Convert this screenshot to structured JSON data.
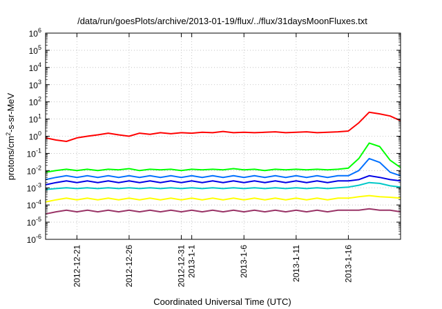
{
  "chart_data": {
    "type": "line",
    "title": "/data/run/goesPlots/archive/2013-01-19/flux/../flux/31daysMoonFluxes.txt",
    "xlabel": "Coordinated Universal Time (UTC)",
    "ylabel": "protons/cm²-s-sr-MeV",
    "ylim": [
      1e-06,
      1000000.0
    ],
    "yscale": "log",
    "xlim": [
      "2012-12-18",
      "2013-01-21"
    ],
    "grid": true,
    "y_ticks": [
      {
        "base": "10",
        "exp": "6"
      },
      {
        "base": "10",
        "exp": "5"
      },
      {
        "base": "10",
        "exp": "4"
      },
      {
        "base": "10",
        "exp": "3"
      },
      {
        "base": "10",
        "exp": "2"
      },
      {
        "base": "10",
        "exp": "1"
      },
      {
        "base": "10",
        "exp": "0"
      },
      {
        "base": "10",
        "exp": "-1"
      },
      {
        "base": "10",
        "exp": "-2"
      },
      {
        "base": "10",
        "exp": "-3"
      },
      {
        "base": "10",
        "exp": "-4"
      },
      {
        "base": "10",
        "exp": "-5"
      },
      {
        "base": "10",
        "exp": "-6"
      }
    ],
    "x_ticks": [
      {
        "date": "2012-12-21",
        "label": "2012-12-21"
      },
      {
        "date": "2012-12-26",
        "label": "2012-12-26"
      },
      {
        "date": "2012-12-31",
        "label": "2012-12-31"
      },
      {
        "date": "2013-01-01",
        "label": "2013-1-1"
      },
      {
        "date": "2013-01-06",
        "label": "2013-1-6"
      },
      {
        "date": "2013-01-11",
        "label": "2013-1-11"
      },
      {
        "date": "2013-01-16",
        "label": "2013-1-16"
      }
    ],
    "series": [
      {
        "color": "#ff0000",
        "points": [
          [
            "2012-12-18",
            0.8
          ],
          [
            "2012-12-19",
            0.6
          ],
          [
            "2012-12-20",
            0.5
          ],
          [
            "2012-12-21",
            0.8
          ],
          [
            "2012-12-22",
            1.0
          ],
          [
            "2012-12-23",
            1.2
          ],
          [
            "2012-12-24",
            1.5
          ],
          [
            "2012-12-25",
            1.2
          ],
          [
            "2012-12-26",
            1.0
          ],
          [
            "2012-12-27",
            1.5
          ],
          [
            "2012-12-28",
            1.3
          ],
          [
            "2012-12-29",
            1.6
          ],
          [
            "2012-12-30",
            1.4
          ],
          [
            "2012-12-31",
            1.6
          ],
          [
            "2013-01-01",
            1.5
          ],
          [
            "2013-01-02",
            1.7
          ],
          [
            "2013-01-03",
            1.6
          ],
          [
            "2013-01-04",
            1.9
          ],
          [
            "2013-01-05",
            1.6
          ],
          [
            "2013-01-06",
            1.7
          ],
          [
            "2013-01-07",
            1.6
          ],
          [
            "2013-01-08",
            1.7
          ],
          [
            "2013-01-09",
            1.8
          ],
          [
            "2013-01-10",
            1.6
          ],
          [
            "2013-01-11",
            1.7
          ],
          [
            "2013-01-12",
            1.8
          ],
          [
            "2013-01-13",
            1.6
          ],
          [
            "2013-01-14",
            1.7
          ],
          [
            "2013-01-15",
            1.8
          ],
          [
            "2013-01-16",
            2.0
          ],
          [
            "2013-01-17",
            6.0
          ],
          [
            "2013-01-18",
            25.0
          ],
          [
            "2013-01-19",
            20.0
          ],
          [
            "2013-01-20",
            15.0
          ],
          [
            "2013-01-21",
            8.0
          ]
        ]
      },
      {
        "color": "#00ff00",
        "points": [
          [
            "2012-12-18",
            0.008
          ],
          [
            "2012-12-19",
            0.01
          ],
          [
            "2012-12-20",
            0.012
          ],
          [
            "2012-12-21",
            0.01
          ],
          [
            "2012-12-22",
            0.012
          ],
          [
            "2012-12-23",
            0.01
          ],
          [
            "2012-12-24",
            0.012
          ],
          [
            "2012-12-25",
            0.011
          ],
          [
            "2012-12-26",
            0.013
          ],
          [
            "2012-12-27",
            0.01
          ],
          [
            "2012-12-28",
            0.012
          ],
          [
            "2012-12-29",
            0.011
          ],
          [
            "2012-12-30",
            0.012
          ],
          [
            "2012-12-31",
            0.01
          ],
          [
            "2013-01-01",
            0.012
          ],
          [
            "2013-01-02",
            0.011
          ],
          [
            "2013-01-03",
            0.012
          ],
          [
            "2013-01-04",
            0.011
          ],
          [
            "2013-01-05",
            0.013
          ],
          [
            "2013-01-06",
            0.011
          ],
          [
            "2013-01-07",
            0.012
          ],
          [
            "2013-01-08",
            0.01
          ],
          [
            "2013-01-09",
            0.012
          ],
          [
            "2013-01-10",
            0.011
          ],
          [
            "2013-01-11",
            0.012
          ],
          [
            "2013-01-12",
            0.011
          ],
          [
            "2013-01-13",
            0.012
          ],
          [
            "2013-01-14",
            0.011
          ],
          [
            "2013-01-15",
            0.012
          ],
          [
            "2013-01-16",
            0.014
          ],
          [
            "2013-01-17",
            0.05
          ],
          [
            "2013-01-18",
            0.4
          ],
          [
            "2013-01-19",
            0.25
          ],
          [
            "2013-01-20",
            0.04
          ],
          [
            "2013-01-21",
            0.015
          ]
        ]
      },
      {
        "color": "#0070ff",
        "points": [
          [
            "2012-12-18",
            0.003
          ],
          [
            "2012-12-19",
            0.004
          ],
          [
            "2012-12-20",
            0.005
          ],
          [
            "2012-12-21",
            0.004
          ],
          [
            "2012-12-22",
            0.005
          ],
          [
            "2012-12-23",
            0.004
          ],
          [
            "2012-12-24",
            0.005
          ],
          [
            "2012-12-25",
            0.004
          ],
          [
            "2012-12-26",
            0.005
          ],
          [
            "2012-12-27",
            0.004
          ],
          [
            "2012-12-28",
            0.005
          ],
          [
            "2012-12-29",
            0.004
          ],
          [
            "2012-12-30",
            0.005
          ],
          [
            "2012-12-31",
            0.004
          ],
          [
            "2013-01-01",
            0.005
          ],
          [
            "2013-01-02",
            0.004
          ],
          [
            "2013-01-03",
            0.005
          ],
          [
            "2013-01-04",
            0.004
          ],
          [
            "2013-01-05",
            0.005
          ],
          [
            "2013-01-06",
            0.004
          ],
          [
            "2013-01-07",
            0.005
          ],
          [
            "2013-01-08",
            0.004
          ],
          [
            "2013-01-09",
            0.005
          ],
          [
            "2013-01-10",
            0.004
          ],
          [
            "2013-01-11",
            0.005
          ],
          [
            "2013-01-12",
            0.004
          ],
          [
            "2013-01-13",
            0.005
          ],
          [
            "2013-01-14",
            0.004
          ],
          [
            "2013-01-15",
            0.005
          ],
          [
            "2013-01-16",
            0.005
          ],
          [
            "2013-01-17",
            0.01
          ],
          [
            "2013-01-18",
            0.05
          ],
          [
            "2013-01-19",
            0.03
          ],
          [
            "2013-01-20",
            0.008
          ],
          [
            "2013-01-21",
            0.005
          ]
        ]
      },
      {
        "color": "#0000e6",
        "points": [
          [
            "2012-12-18",
            0.0015
          ],
          [
            "2012-12-19",
            0.002
          ],
          [
            "2012-12-20",
            0.0025
          ],
          [
            "2012-12-21",
            0.002
          ],
          [
            "2012-12-22",
            0.0025
          ],
          [
            "2012-12-23",
            0.002
          ],
          [
            "2012-12-24",
            0.0025
          ],
          [
            "2012-12-25",
            0.002
          ],
          [
            "2012-12-26",
            0.0025
          ],
          [
            "2012-12-27",
            0.002
          ],
          [
            "2012-12-28",
            0.0025
          ],
          [
            "2012-12-29",
            0.002
          ],
          [
            "2012-12-30",
            0.0025
          ],
          [
            "2012-12-31",
            0.002
          ],
          [
            "2013-01-01",
            0.0025
          ],
          [
            "2013-01-02",
            0.002
          ],
          [
            "2013-01-03",
            0.0025
          ],
          [
            "2013-01-04",
            0.002
          ],
          [
            "2013-01-05",
            0.0025
          ],
          [
            "2013-01-06",
            0.002
          ],
          [
            "2013-01-07",
            0.0025
          ],
          [
            "2013-01-08",
            0.002
          ],
          [
            "2013-01-09",
            0.0025
          ],
          [
            "2013-01-10",
            0.002
          ],
          [
            "2013-01-11",
            0.0025
          ],
          [
            "2013-01-12",
            0.002
          ],
          [
            "2013-01-13",
            0.0025
          ],
          [
            "2013-01-14",
            0.002
          ],
          [
            "2013-01-15",
            0.0025
          ],
          [
            "2013-01-16",
            0.0025
          ],
          [
            "2013-01-17",
            0.003
          ],
          [
            "2013-01-18",
            0.005
          ],
          [
            "2013-01-19",
            0.004
          ],
          [
            "2013-01-20",
            0.003
          ],
          [
            "2013-01-21",
            0.0025
          ]
        ]
      },
      {
        "color": "#00c8c8",
        "points": [
          [
            "2012-12-18",
            0.0008
          ],
          [
            "2012-12-19",
            0.0009
          ],
          [
            "2012-12-20",
            0.001
          ],
          [
            "2012-12-21",
            0.0009
          ],
          [
            "2012-12-22",
            0.001
          ],
          [
            "2012-12-23",
            0.0009
          ],
          [
            "2012-12-24",
            0.001
          ],
          [
            "2012-12-25",
            0.0009
          ],
          [
            "2012-12-26",
            0.001
          ],
          [
            "2012-12-27",
            0.0009
          ],
          [
            "2012-12-28",
            0.001
          ],
          [
            "2012-12-29",
            0.0009
          ],
          [
            "2012-12-30",
            0.001
          ],
          [
            "2012-12-31",
            0.0009
          ],
          [
            "2013-01-01",
            0.001
          ],
          [
            "2013-01-02",
            0.0009
          ],
          [
            "2013-01-03",
            0.001
          ],
          [
            "2013-01-04",
            0.0009
          ],
          [
            "2013-01-05",
            0.001
          ],
          [
            "2013-01-06",
            0.0009
          ],
          [
            "2013-01-07",
            0.001
          ],
          [
            "2013-01-08",
            0.0009
          ],
          [
            "2013-01-09",
            0.001
          ],
          [
            "2013-01-10",
            0.0009
          ],
          [
            "2013-01-11",
            0.001
          ],
          [
            "2013-01-12",
            0.0009
          ],
          [
            "2013-01-13",
            0.001
          ],
          [
            "2013-01-14",
            0.0009
          ],
          [
            "2013-01-15",
            0.001
          ],
          [
            "2013-01-16",
            0.0011
          ],
          [
            "2013-01-17",
            0.0014
          ],
          [
            "2013-01-18",
            0.002
          ],
          [
            "2013-01-19",
            0.0018
          ],
          [
            "2013-01-20",
            0.0013
          ],
          [
            "2013-01-21",
            0.0011
          ]
        ]
      },
      {
        "color": "#ffff00",
        "points": [
          [
            "2012-12-18",
            0.00015
          ],
          [
            "2012-12-19",
            0.0002
          ],
          [
            "2012-12-20",
            0.00025
          ],
          [
            "2012-12-21",
            0.0002
          ],
          [
            "2012-12-22",
            0.00025
          ],
          [
            "2012-12-23",
            0.0002
          ],
          [
            "2012-12-24",
            0.00025
          ],
          [
            "2012-12-25",
            0.0002
          ],
          [
            "2012-12-26",
            0.00025
          ],
          [
            "2012-12-27",
            0.0002
          ],
          [
            "2012-12-28",
            0.00025
          ],
          [
            "2012-12-29",
            0.0002
          ],
          [
            "2012-12-30",
            0.00025
          ],
          [
            "2012-12-31",
            0.0002
          ],
          [
            "2013-01-01",
            0.00025
          ],
          [
            "2013-01-02",
            0.0002
          ],
          [
            "2013-01-03",
            0.00025
          ],
          [
            "2013-01-04",
            0.0002
          ],
          [
            "2013-01-05",
            0.00025
          ],
          [
            "2013-01-06",
            0.0002
          ],
          [
            "2013-01-07",
            0.00025
          ],
          [
            "2013-01-08",
            0.0002
          ],
          [
            "2013-01-09",
            0.00025
          ],
          [
            "2013-01-10",
            0.0002
          ],
          [
            "2013-01-11",
            0.00025
          ],
          [
            "2013-01-12",
            0.0002
          ],
          [
            "2013-01-13",
            0.00025
          ],
          [
            "2013-01-14",
            0.0002
          ],
          [
            "2013-01-15",
            0.00025
          ],
          [
            "2013-01-16",
            0.00025
          ],
          [
            "2013-01-17",
            0.0003
          ],
          [
            "2013-01-18",
            0.00035
          ],
          [
            "2013-01-19",
            0.0003
          ],
          [
            "2013-01-20",
            0.00028
          ],
          [
            "2013-01-21",
            0.00025
          ]
        ]
      },
      {
        "color": "#993366",
        "points": [
          [
            "2012-12-18",
            3e-05
          ],
          [
            "2012-12-19",
            4e-05
          ],
          [
            "2012-12-20",
            5e-05
          ],
          [
            "2012-12-21",
            4e-05
          ],
          [
            "2012-12-22",
            5e-05
          ],
          [
            "2012-12-23",
            4e-05
          ],
          [
            "2012-12-24",
            5e-05
          ],
          [
            "2012-12-25",
            4e-05
          ],
          [
            "2012-12-26",
            5e-05
          ],
          [
            "2012-12-27",
            4e-05
          ],
          [
            "2012-12-28",
            5e-05
          ],
          [
            "2012-12-29",
            4e-05
          ],
          [
            "2012-12-30",
            5e-05
          ],
          [
            "2012-12-31",
            4e-05
          ],
          [
            "2013-01-01",
            5e-05
          ],
          [
            "2013-01-02",
            4e-05
          ],
          [
            "2013-01-03",
            5e-05
          ],
          [
            "2013-01-04",
            4e-05
          ],
          [
            "2013-01-05",
            5e-05
          ],
          [
            "2013-01-06",
            4e-05
          ],
          [
            "2013-01-07",
            5e-05
          ],
          [
            "2013-01-08",
            4e-05
          ],
          [
            "2013-01-09",
            5e-05
          ],
          [
            "2013-01-10",
            4e-05
          ],
          [
            "2013-01-11",
            5e-05
          ],
          [
            "2013-01-12",
            4e-05
          ],
          [
            "2013-01-13",
            5e-05
          ],
          [
            "2013-01-14",
            4e-05
          ],
          [
            "2013-01-15",
            5e-05
          ],
          [
            "2013-01-16",
            5e-05
          ],
          [
            "2013-01-17",
            5e-05
          ],
          [
            "2013-01-18",
            6e-05
          ],
          [
            "2013-01-19",
            5e-05
          ],
          [
            "2013-01-20",
            5e-05
          ],
          [
            "2013-01-21",
            4e-05
          ]
        ]
      }
    ]
  }
}
